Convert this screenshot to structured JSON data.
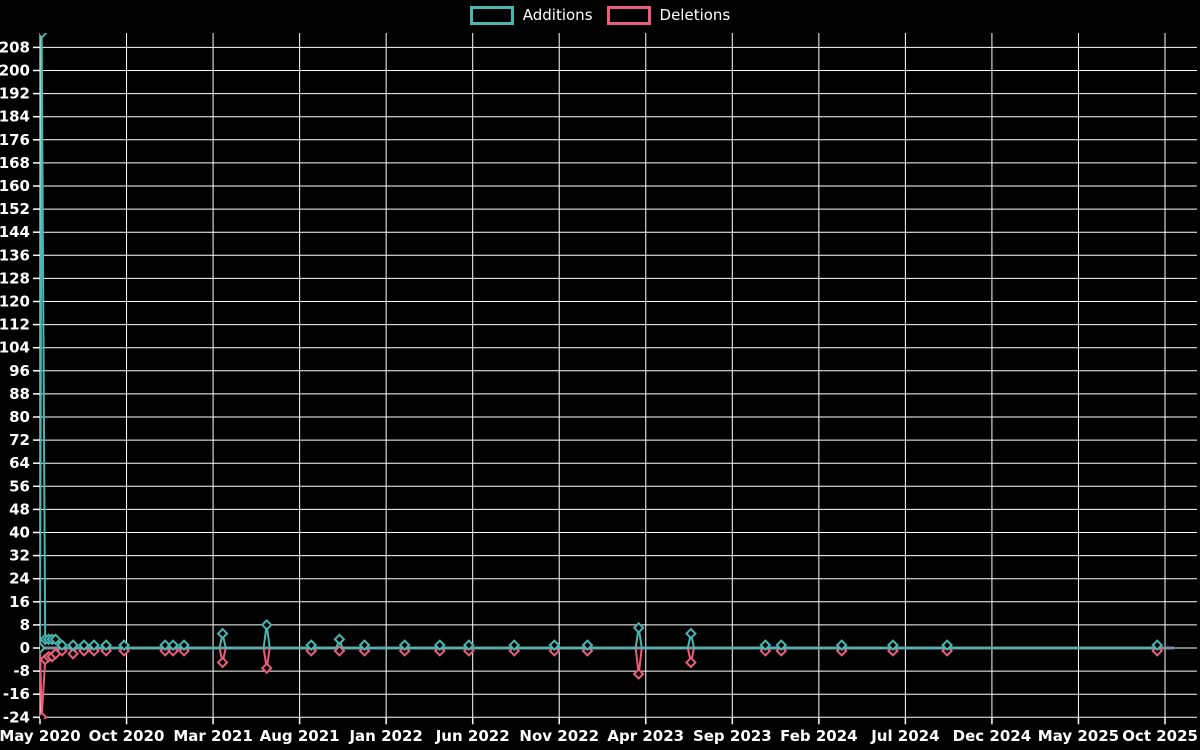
{
  "legend": {
    "additions_label": "Additions",
    "deletions_label": "Deletions"
  },
  "colors": {
    "background": "#000000",
    "grid": "#ffffff",
    "zero_line": "#7e8e9a",
    "additions": "#49b6b1",
    "deletions": "#ea5e7c",
    "text": "#ffffff"
  },
  "chart_data": {
    "type": "line",
    "title": "",
    "xlabel": "",
    "ylabel": "",
    "grid": true,
    "legend_position": "top-center",
    "marker_style": "open-diamond",
    "y_ticks": [
      -24,
      -16,
      -8,
      0,
      8,
      16,
      24,
      32,
      40,
      48,
      56,
      64,
      72,
      80,
      88,
      96,
      104,
      112,
      120,
      128,
      136,
      144,
      152,
      160,
      168,
      176,
      184,
      192,
      200,
      208
    ],
    "ylim": [
      -24,
      213
    ],
    "x_tick_labels": [
      "May 2020",
      "Oct 2020",
      "Mar 2021",
      "Aug 2021",
      "Jan 2022",
      "Jun 2022",
      "Nov 2022",
      "Apr 2023",
      "Sep 2023",
      "Feb 2024",
      "Jul 2024",
      "Dec 2024",
      "May 2025",
      "Oct 2025"
    ],
    "x_tick_months": [
      0,
      5,
      10,
      15,
      20,
      25,
      30,
      35,
      40,
      45,
      50,
      55,
      60,
      65
    ],
    "xlim_months": [
      0,
      65.5
    ],
    "zero_baseline": 0,
    "series_names": [
      "Additions",
      "Deletions"
    ],
    "points": [
      {
        "m": 0.0,
        "add": 0,
        "del": 0
      },
      {
        "m": 0.1,
        "add": 213,
        "del": -24
      },
      {
        "m": 0.3,
        "add": 3,
        "del": -4
      },
      {
        "m": 0.5,
        "add": 3,
        "del": -3
      },
      {
        "m": 0.7,
        "add": 3,
        "del": -3
      },
      {
        "m": 0.9,
        "add": 3,
        "del": -2
      },
      {
        "m": 1.27,
        "add": 1,
        "del": -1
      },
      {
        "m": 1.91,
        "add": 1,
        "del": -2
      },
      {
        "m": 2.54,
        "add": 1,
        "del": -1
      },
      {
        "m": 3.12,
        "add": 1,
        "del": -1
      },
      {
        "m": 3.82,
        "add": 1,
        "del": -1
      },
      {
        "m": 4.86,
        "add": 1,
        "del": -1
      },
      {
        "m": 7.23,
        "add": 1,
        "del": -1
      },
      {
        "m": 7.69,
        "add": 1,
        "del": -1
      },
      {
        "m": 8.32,
        "add": 1,
        "del": -1
      },
      {
        "m": 10.55,
        "add": 5,
        "del": -5
      },
      {
        "m": 13.1,
        "add": 8,
        "del": -7
      },
      {
        "m": 15.67,
        "add": 1,
        "del": -1
      },
      {
        "m": 17.3,
        "add": 3,
        "del": -1
      },
      {
        "m": 18.75,
        "add": 1,
        "del": -1
      },
      {
        "m": 21.07,
        "add": 1,
        "del": -1
      },
      {
        "m": 23.1,
        "add": 1,
        "del": -1
      },
      {
        "m": 24.78,
        "add": 1,
        "del": -1
      },
      {
        "m": 27.4,
        "add": 1,
        "del": -1
      },
      {
        "m": 29.72,
        "add": 1,
        "del": -1
      },
      {
        "m": 31.63,
        "add": 1,
        "del": -1
      },
      {
        "m": 34.59,
        "add": 7,
        "del": -9
      },
      {
        "m": 37.61,
        "add": 5,
        "del": -5
      },
      {
        "m": 41.91,
        "add": 1,
        "del": -1
      },
      {
        "m": 42.83,
        "add": 1,
        "del": -1
      },
      {
        "m": 46.32,
        "add": 1,
        "del": -1
      },
      {
        "m": 49.28,
        "add": 1,
        "del": -1
      },
      {
        "m": 52.41,
        "add": 1,
        "del": -1
      },
      {
        "m": 64.55,
        "add": 1,
        "del": -1
      }
    ]
  }
}
